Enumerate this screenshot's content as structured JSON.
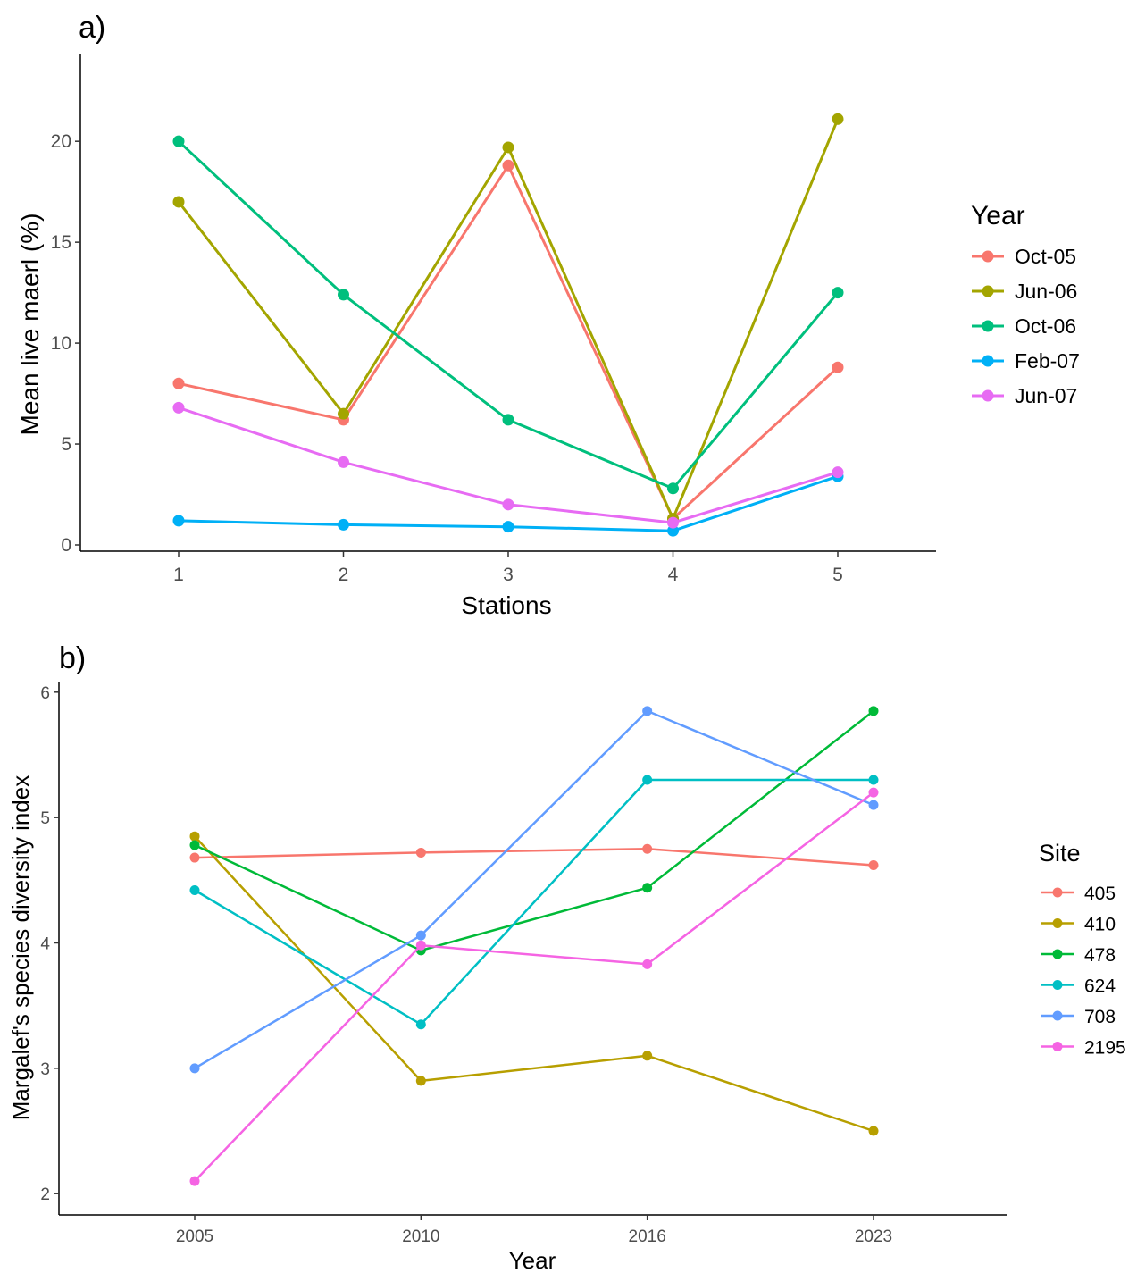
{
  "chart_data": [
    {
      "type": "line",
      "panel_label": "a)",
      "xlabel": "Stations",
      "ylabel": "Mean live maerl (%)",
      "categories": [
        "1",
        "2",
        "3",
        "4",
        "5"
      ],
      "ylim": [
        0,
        22
      ],
      "yticks": [
        "0",
        "5",
        "10",
        "15",
        "20"
      ],
      "grid": false,
      "legend": {
        "title": "Year",
        "placement": "right"
      },
      "series": [
        {
          "name": "Oct-05",
          "color": "#F8766D",
          "values": [
            8.0,
            6.2,
            18.8,
            1.3,
            8.8
          ]
        },
        {
          "name": "Jun-06",
          "color": "#A3A500",
          "values": [
            17.0,
            6.5,
            19.7,
            1.3,
            21.1
          ]
        },
        {
          "name": "Oct-06",
          "color": "#00BF7D",
          "values": [
            20.0,
            12.4,
            6.2,
            2.8,
            12.5
          ]
        },
        {
          "name": "Feb-07",
          "color": "#00B0F6",
          "values": [
            1.2,
            1.0,
            0.9,
            0.7,
            3.4
          ]
        },
        {
          "name": "Jun-07",
          "color": "#E76BF3",
          "values": [
            6.8,
            4.1,
            2.0,
            1.1,
            3.6
          ]
        }
      ]
    },
    {
      "type": "line",
      "panel_label": "b)",
      "xlabel": "Year",
      "ylabel": "Margalef's species diversity index",
      "categories": [
        "2005",
        "2010",
        "2016",
        "2023"
      ],
      "ylim": [
        1.93,
        6.02
      ],
      "yticks": [
        "2",
        "3",
        "4",
        "5",
        "6"
      ],
      "grid": false,
      "legend": {
        "title": "Site",
        "placement": "right"
      },
      "series": [
        {
          "name": "405",
          "color": "#F8766D",
          "values": [
            4.68,
            4.72,
            4.75,
            4.62
          ]
        },
        {
          "name": "410",
          "color": "#B79F00",
          "values": [
            4.85,
            2.9,
            3.1,
            2.5
          ]
        },
        {
          "name": "478",
          "color": "#00BA38",
          "values": [
            4.78,
            3.94,
            4.44,
            5.85
          ]
        },
        {
          "name": "624",
          "color": "#00BFC4",
          "values": [
            4.42,
            3.35,
            5.3,
            5.3
          ]
        },
        {
          "name": "708",
          "color": "#619CFF",
          "values": [
            3.0,
            4.06,
            5.85,
            5.1
          ]
        },
        {
          "name": "2195",
          "color": "#F564E3",
          "values": [
            2.1,
            3.98,
            3.83,
            5.2
          ]
        }
      ]
    }
  ]
}
